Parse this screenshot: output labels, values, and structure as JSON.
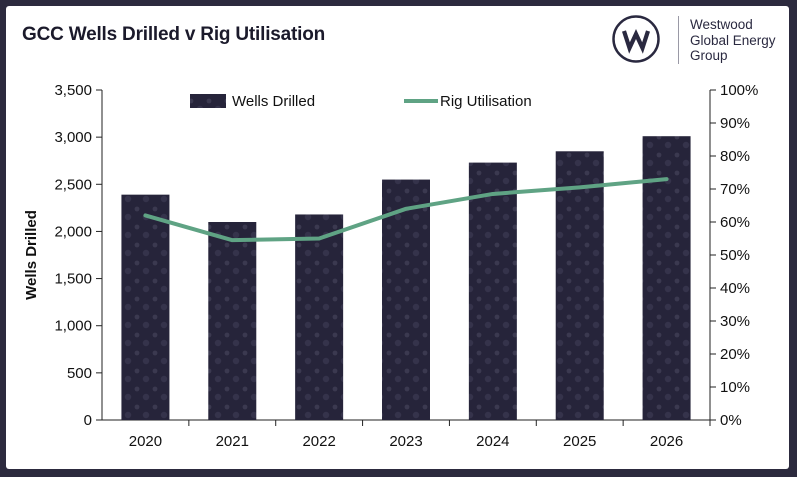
{
  "header": {
    "title": "GCC Wells Drilled v Rig Utilisation",
    "logo_text_lines": [
      "Westwood",
      "Global Energy",
      "Group"
    ],
    "logo_icon": "w-monogram-icon"
  },
  "colors": {
    "background": "#2c2a3e",
    "bar": "#26243a",
    "line": "#5fa384",
    "text": "#111111"
  },
  "chart_data": {
    "type": "bar",
    "title": "GCC Wells Drilled v Rig Utilisation",
    "categories": [
      "2020",
      "2021",
      "2022",
      "2023",
      "2024",
      "2025",
      "2026"
    ],
    "series": [
      {
        "name": "Wells Drilled",
        "type": "bar",
        "axis": "left",
        "values": [
          2390,
          2100,
          2180,
          2550,
          2730,
          2850,
          3010
        ]
      },
      {
        "name": "Rig Utilisation",
        "type": "line",
        "axis": "right",
        "values": [
          62,
          54.5,
          55,
          64,
          68.5,
          70.5,
          73
        ]
      }
    ],
    "ylabel": "Wells Drilled",
    "ylim": [
      0,
      3500
    ],
    "yticks": [
      "0",
      "500",
      "1,000",
      "1,500",
      "2,000",
      "2,500",
      "3,000",
      "3,500"
    ],
    "y2lim": [
      0,
      100
    ],
    "y2ticks": [
      "0%",
      "10%",
      "20%",
      "30%",
      "40%",
      "50%",
      "60%",
      "70%",
      "80%",
      "90%",
      "100%"
    ],
    "legend": [
      "Wells Drilled",
      "Rig Utilisation"
    ],
    "legend_position": "top"
  }
}
